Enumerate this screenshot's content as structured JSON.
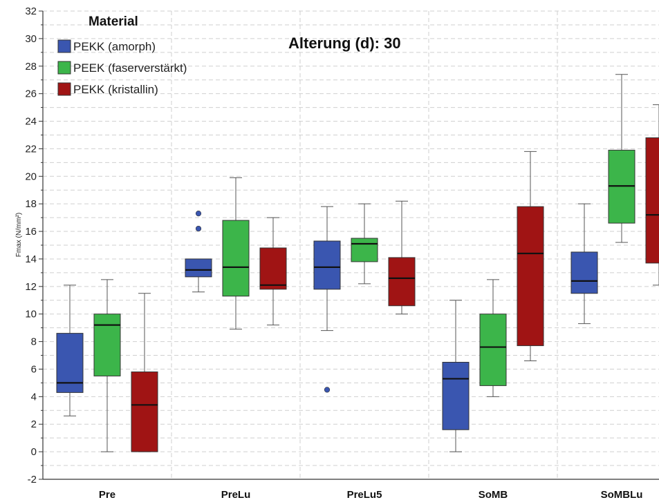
{
  "chart_data": {
    "type": "box",
    "annotation": "Alterung (d): 30",
    "ylabel": "Fmax (N/mm²)",
    "ylim": [
      -2,
      32
    ],
    "yticks": [
      -2,
      0,
      2,
      4,
      6,
      8,
      10,
      12,
      14,
      16,
      18,
      20,
      22,
      24,
      26,
      28,
      30,
      32
    ],
    "grid": true,
    "legend": {
      "title": "Material",
      "position": "top-left",
      "entries": [
        "PEKK (amorph)",
        "PEEK (faserverstärkt)",
        "PEKK (kristallin)"
      ]
    },
    "categories": [
      "Pre",
      "PreLu",
      "PreLu5",
      "SoMB",
      "SoMBLu"
    ],
    "series": [
      {
        "name": "PEKK (amorph)",
        "color": "#3a56b0",
        "boxes": [
          {
            "min": 2.6,
            "q1": 4.3,
            "median": 5.0,
            "q3": 8.6,
            "max": 12.1,
            "outliers": []
          },
          {
            "min": 11.6,
            "q1": 12.7,
            "median": 13.2,
            "q3": 14.0,
            "max": 14.0,
            "outliers": [
              16.2,
              17.3
            ]
          },
          {
            "min": 8.8,
            "q1": 11.8,
            "median": 13.4,
            "q3": 15.3,
            "max": 17.8,
            "outliers": [
              4.5
            ]
          },
          {
            "min": 0.0,
            "q1": 1.6,
            "median": 5.3,
            "q3": 6.5,
            "max": 11.0,
            "outliers": []
          },
          {
            "min": 9.3,
            "q1": 11.5,
            "median": 12.4,
            "q3": 14.5,
            "max": 18.0,
            "outliers": []
          }
        ]
      },
      {
        "name": "PEEK (faserverstärkt)",
        "color": "#3cb54a",
        "boxes": [
          {
            "min": 0.0,
            "q1": 5.5,
            "median": 9.2,
            "q3": 10.0,
            "max": 12.5,
            "outliers": []
          },
          {
            "min": 8.9,
            "q1": 11.3,
            "median": 13.4,
            "q3": 16.8,
            "max": 19.9,
            "outliers": []
          },
          {
            "min": 12.2,
            "q1": 13.8,
            "median": 15.1,
            "q3": 15.5,
            "max": 18.0,
            "outliers": []
          },
          {
            "min": 4.0,
            "q1": 4.8,
            "median": 7.6,
            "q3": 10.0,
            "max": 12.5,
            "outliers": []
          },
          {
            "min": 15.2,
            "q1": 16.6,
            "median": 19.3,
            "q3": 21.9,
            "max": 27.4,
            "outliers": []
          }
        ]
      },
      {
        "name": "PEKK (kristallin)",
        "color": "#a01414",
        "boxes": [
          {
            "min": 0.0,
            "q1": 0.0,
            "median": 3.4,
            "q3": 5.8,
            "max": 11.5,
            "outliers": []
          },
          {
            "min": 9.2,
            "q1": 11.8,
            "median": 12.1,
            "q3": 14.8,
            "max": 17.0,
            "outliers": []
          },
          {
            "min": 10.0,
            "q1": 10.6,
            "median": 12.6,
            "q3": 14.1,
            "max": 18.2,
            "outliers": []
          },
          {
            "min": 6.6,
            "q1": 7.7,
            "median": 14.4,
            "q3": 17.8,
            "max": 21.8,
            "outliers": []
          },
          {
            "min": 12.1,
            "q1": 13.7,
            "median": 17.2,
            "q3": 22.8,
            "max": 25.2,
            "outliers": []
          }
        ]
      }
    ]
  }
}
